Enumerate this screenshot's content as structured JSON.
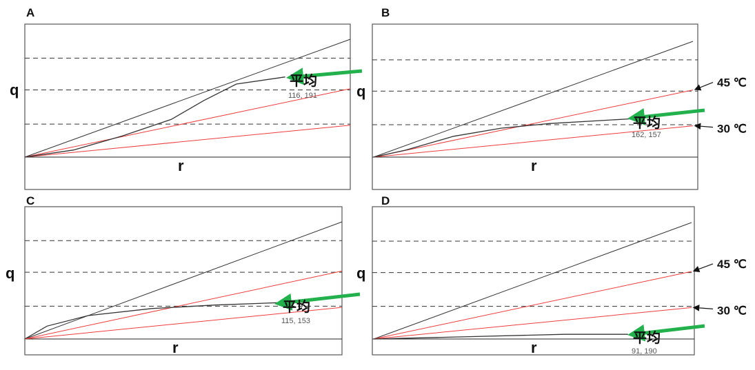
{
  "chart_data": [
    {
      "type": "line",
      "panel_label": "A",
      "xlabel": "r",
      "ylabel": "q",
      "average_label": "平均",
      "average_value": "116, 191",
      "temperature_labels": [],
      "series": [
        {
          "values": [
            [
              0,
              0
            ],
            [
              1,
              1
            ]
          ]
        },
        {
          "values": [
            [
              0,
              0
            ],
            [
              1,
              0.58
            ]
          ]
        },
        {
          "values": [
            [
              0,
              0
            ],
            [
              1,
              0.27
            ]
          ]
        },
        {
          "values": [
            [
              0,
              0
            ],
            [
              0.15,
              0.06
            ],
            [
              0.3,
              0.18
            ],
            [
              0.45,
              0.32
            ],
            [
              0.55,
              0.48
            ],
            [
              0.65,
              0.62
            ],
            [
              0.8,
              0.68
            ]
          ]
        }
      ],
      "hlines": [
        0.28,
        0.57,
        0.84
      ]
    },
    {
      "type": "line",
      "panel_label": "B",
      "xlabel": "r",
      "ylabel": "q",
      "average_label": "平均",
      "average_value": "162, 157",
      "temperature_labels": [
        "45 ℃",
        "30 ℃"
      ],
      "series": [
        {
          "values": [
            [
              0,
              0
            ],
            [
              1,
              1
            ]
          ]
        },
        {
          "values": [
            [
              0,
              0
            ],
            [
              1,
              0.58
            ]
          ]
        },
        {
          "values": [
            [
              0,
              0
            ],
            [
              1,
              0.27
            ]
          ]
        },
        {
          "values": [
            [
              0,
              0
            ],
            [
              0.1,
              0.06
            ],
            [
              0.25,
              0.18
            ],
            [
              0.4,
              0.25
            ],
            [
              0.55,
              0.29
            ],
            [
              0.8,
              0.33
            ]
          ]
        }
      ],
      "hlines": [
        0.28,
        0.57,
        0.84
      ]
    },
    {
      "type": "line",
      "panel_label": "C",
      "xlabel": "r",
      "ylabel": "q",
      "average_label": "平均",
      "average_value": "115, 153",
      "temperature_labels": [],
      "series": [
        {
          "values": [
            [
              0,
              0
            ],
            [
              1,
              1
            ]
          ]
        },
        {
          "values": [
            [
              0,
              0
            ],
            [
              1,
              0.58
            ]
          ]
        },
        {
          "values": [
            [
              0,
              0
            ],
            [
              1,
              0.27
            ]
          ]
        },
        {
          "values": [
            [
              0,
              0
            ],
            [
              0.07,
              0.11
            ],
            [
              0.2,
              0.2
            ],
            [
              0.4,
              0.26
            ],
            [
              0.6,
              0.29
            ],
            [
              0.8,
              0.31
            ]
          ]
        }
      ],
      "hlines": [
        0.28,
        0.57,
        0.84
      ]
    },
    {
      "type": "line",
      "panel_label": "D",
      "xlabel": "r",
      "ylabel": "q",
      "average_label": "平均",
      "average_value": "91, 190",
      "temperature_labels": [
        "45 ℃",
        "30 ℃"
      ],
      "series": [
        {
          "values": [
            [
              0,
              0
            ],
            [
              1,
              1
            ]
          ]
        },
        {
          "values": [
            [
              0,
              0
            ],
            [
              1,
              0.58
            ]
          ]
        },
        {
          "values": [
            [
              0,
              0
            ],
            [
              1,
              0.27
            ]
          ]
        },
        {
          "values": [
            [
              0,
              0
            ],
            [
              0.3,
              0.02
            ],
            [
              0.6,
              0.04
            ],
            [
              0.8,
              0.04
            ]
          ]
        }
      ],
      "hlines": [
        0.28,
        0.57,
        0.84
      ]
    }
  ],
  "colors": {
    "black_line": "#333333",
    "red_line": "#ee3b3b",
    "dashed": "#333333",
    "arrow_green": "#22b14c",
    "value_text": "#555555"
  }
}
